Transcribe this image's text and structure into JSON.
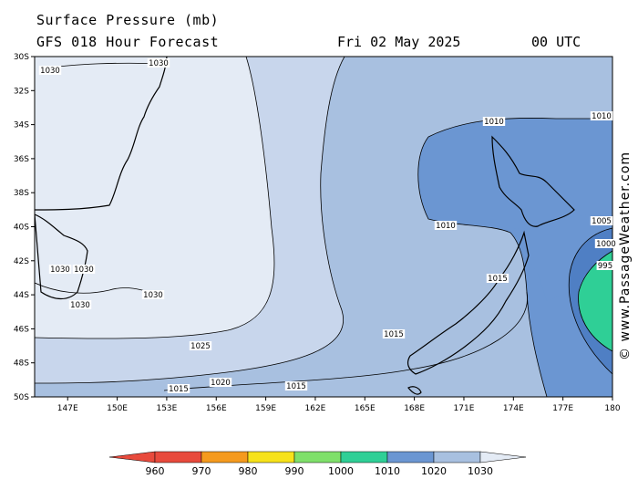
{
  "header": {
    "title": "Surface Pressure (mb)",
    "subtitle": "GFS 018 Hour Forecast",
    "date": "Fri 02 May 2025",
    "time": "00 UTC"
  },
  "credit": "© www.PassageWeather.com",
  "map": {
    "lat_ticks": [
      "30S",
      "32S",
      "34S",
      "36S",
      "38S",
      "40S",
      "42S",
      "44S",
      "46S",
      "48S",
      "50S"
    ],
    "lon_ticks": [
      "147E",
      "150E",
      "153E",
      "156E",
      "159E",
      "162E",
      "165E",
      "168E",
      "171E",
      "174E",
      "177E",
      "180"
    ],
    "lat_range": [
      -30,
      -50
    ],
    "lon_range": [
      145,
      180
    ],
    "contour_labels": [
      "1030",
      "1030",
      "1030",
      "1030",
      "1030",
      "1030",
      "1025",
      "1020",
      "1015",
      "1015",
      "1010",
      "1010",
      "1010",
      "1015",
      "1015",
      "1005",
      "1000",
      "995"
    ]
  },
  "legend": {
    "values": [
      "960",
      "970",
      "980",
      "990",
      "1000",
      "1010",
      "1020",
      "1030"
    ],
    "colors": [
      "#e84a3c",
      "#f59a1e",
      "#f7e21a",
      "#7fe06a",
      "#2fcf96",
      "#6b96d2",
      "#a8c0e0",
      "#e4ebf5"
    ]
  }
}
